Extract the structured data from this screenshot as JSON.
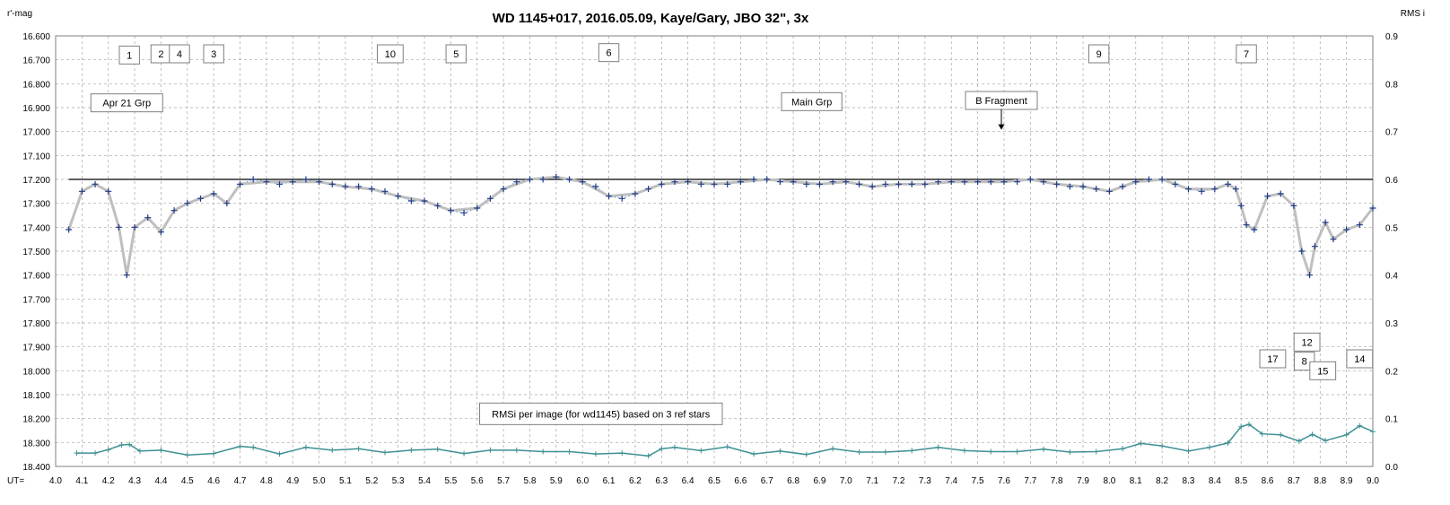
{
  "chart_data": {
    "type": "scatter",
    "title": "WD 1145+017,  2016.05.09,  Kaye/Gary,  JBO 32\",  3x",
    "ylabel_left": "r'-mag",
    "ylabel_right": "RMS i",
    "xlabel": "UT=",
    "xlim": [
      4.0,
      9.0
    ],
    "ylim_left": [
      18.4,
      16.6
    ],
    "ylim_right": [
      0.0,
      0.9
    ],
    "left_axis_inverted": true,
    "grid": true,
    "x_ticks": [
      "4.0",
      "4.1",
      "4.2",
      "4.3",
      "4.4",
      "4.5",
      "4.6",
      "4.7",
      "4.8",
      "4.9",
      "5.0",
      "5.1",
      "5.2",
      "5.3",
      "5.4",
      "5.5",
      "5.6",
      "5.7",
      "5.8",
      "5.9",
      "6.0",
      "6.1",
      "6.2",
      "6.3",
      "6.4",
      "6.5",
      "6.6",
      "6.7",
      "6.8",
      "6.9",
      "7.0",
      "7.1",
      "7.2",
      "7.3",
      "7.4",
      "7.5",
      "7.6",
      "7.7",
      "7.8",
      "7.9",
      "8.0",
      "8.1",
      "8.2",
      "8.3",
      "8.4",
      "8.5",
      "8.6",
      "8.7",
      "8.8",
      "8.9",
      "9.0"
    ],
    "y_ticks_left": [
      "16.600",
      "16.700",
      "16.800",
      "16.900",
      "17.000",
      "17.100",
      "17.200",
      "17.300",
      "17.400",
      "17.500",
      "17.600",
      "17.700",
      "17.800",
      "17.900",
      "18.000",
      "18.100",
      "18.200",
      "18.300",
      "18.400"
    ],
    "y_ticks_right": [
      "0.9",
      "0.8",
      "0.7",
      "0.6",
      "0.5",
      "0.4",
      "0.3",
      "0.2",
      "0.1",
      "0.0"
    ],
    "reference_line": 17.2,
    "colors": {
      "mag_points": "#1f3c88",
      "mag_dotted": "#6f9fd8",
      "trend": "#bfbfbf",
      "rms": "#3e8f94",
      "grid": "#a6a6a6"
    },
    "series": [
      {
        "role": "magnitude",
        "x": [
          4.05,
          4.1,
          4.15,
          4.2,
          4.24,
          4.27,
          4.3,
          4.35,
          4.4,
          4.45,
          4.5,
          4.55,
          4.6,
          4.65,
          4.7,
          4.75,
          4.8,
          4.85,
          4.9,
          4.95,
          5.0,
          5.05,
          5.1,
          5.15,
          5.2,
          5.25,
          5.3,
          5.35,
          5.4,
          5.45,
          5.5,
          5.55,
          5.6,
          5.65,
          5.7,
          5.75,
          5.8,
          5.85,
          5.9,
          5.95,
          6.0,
          6.05,
          6.1,
          6.15,
          6.2,
          6.25,
          6.3,
          6.35,
          6.4,
          6.45,
          6.5,
          6.55,
          6.6,
          6.65,
          6.7,
          6.75,
          6.8,
          6.85,
          6.9,
          6.95,
          7.0,
          7.05,
          7.1,
          7.15,
          7.2,
          7.25,
          7.3,
          7.35,
          7.4,
          7.45,
          7.5,
          7.55,
          7.6,
          7.65,
          7.7,
          7.75,
          7.8,
          7.85,
          7.9,
          7.95,
          8.0,
          8.05,
          8.1,
          8.15,
          8.2,
          8.25,
          8.3,
          8.35,
          8.4,
          8.45,
          8.48,
          8.5,
          8.52,
          8.55,
          8.6,
          8.65,
          8.7,
          8.73,
          8.76,
          8.78,
          8.82,
          8.85,
          8.9,
          8.95,
          9.0
        ],
        "values": [
          17.41,
          17.25,
          17.22,
          17.25,
          17.4,
          17.6,
          17.4,
          17.36,
          17.42,
          17.33,
          17.3,
          17.28,
          17.26,
          17.3,
          17.22,
          17.2,
          17.21,
          17.22,
          17.21,
          17.2,
          17.21,
          17.22,
          17.23,
          17.23,
          17.24,
          17.25,
          17.27,
          17.29,
          17.29,
          17.31,
          17.33,
          17.34,
          17.32,
          17.28,
          17.24,
          17.21,
          17.2,
          17.2,
          17.19,
          17.2,
          17.21,
          17.23,
          17.27,
          17.28,
          17.26,
          17.24,
          17.22,
          17.21,
          17.21,
          17.22,
          17.22,
          17.22,
          17.21,
          17.2,
          17.2,
          17.21,
          17.21,
          17.22,
          17.22,
          17.21,
          17.21,
          17.22,
          17.23,
          17.22,
          17.22,
          17.22,
          17.22,
          17.21,
          17.21,
          17.21,
          17.21,
          17.21,
          17.21,
          17.21,
          17.2,
          17.21,
          17.22,
          17.23,
          17.23,
          17.24,
          17.25,
          17.23,
          17.21,
          17.2,
          17.2,
          17.22,
          17.24,
          17.25,
          17.24,
          17.22,
          17.24,
          17.31,
          17.39,
          17.41,
          17.27,
          17.26,
          17.31,
          17.5,
          17.6,
          17.48,
          17.38,
          17.45,
          17.41,
          17.39,
          17.32
        ]
      },
      {
        "role": "trend",
        "x": [
          4.05,
          4.1,
          4.15,
          4.2,
          4.24,
          4.27,
          4.3,
          4.35,
          4.4,
          4.45,
          4.5,
          4.55,
          4.6,
          4.65,
          4.7,
          4.8,
          4.9,
          5.0,
          5.1,
          5.2,
          5.3,
          5.4,
          5.5,
          5.6,
          5.7,
          5.8,
          5.9,
          6.0,
          6.1,
          6.2,
          6.3,
          6.4,
          6.5,
          6.6,
          6.7,
          6.8,
          6.9,
          7.0,
          7.1,
          7.2,
          7.3,
          7.4,
          7.5,
          7.6,
          7.7,
          7.8,
          7.9,
          8.0,
          8.1,
          8.2,
          8.3,
          8.4,
          8.45,
          8.48,
          8.5,
          8.52,
          8.55,
          8.6,
          8.65,
          8.7,
          8.73,
          8.76,
          8.78,
          8.82,
          8.85,
          8.9,
          8.95,
          9.0
        ],
        "values": [
          17.41,
          17.25,
          17.22,
          17.25,
          17.4,
          17.6,
          17.4,
          17.36,
          17.42,
          17.33,
          17.3,
          17.28,
          17.26,
          17.3,
          17.22,
          17.21,
          17.21,
          17.21,
          17.23,
          17.24,
          17.27,
          17.29,
          17.33,
          17.32,
          17.24,
          17.2,
          17.19,
          17.21,
          17.27,
          17.26,
          17.22,
          17.21,
          17.22,
          17.21,
          17.2,
          17.21,
          17.22,
          17.21,
          17.23,
          17.22,
          17.22,
          17.21,
          17.21,
          17.21,
          17.2,
          17.22,
          17.23,
          17.25,
          17.21,
          17.2,
          17.24,
          17.24,
          17.22,
          17.24,
          17.31,
          17.39,
          17.41,
          17.27,
          17.26,
          17.31,
          17.5,
          17.6,
          17.48,
          17.38,
          17.45,
          17.41,
          17.39,
          17.32
        ]
      },
      {
        "name": "RMSi per image (for wd1145) based on 3 ref stars",
        "role": "rms",
        "x": [
          4.08,
          4.15,
          4.2,
          4.25,
          4.28,
          4.32,
          4.4,
          4.5,
          4.6,
          4.7,
          4.75,
          4.85,
          4.95,
          5.05,
          5.15,
          5.25,
          5.35,
          5.45,
          5.55,
          5.65,
          5.75,
          5.85,
          5.95,
          6.05,
          6.15,
          6.25,
          6.3,
          6.35,
          6.45,
          6.55,
          6.65,
          6.75,
          6.85,
          6.95,
          7.05,
          7.15,
          7.25,
          7.35,
          7.45,
          7.55,
          7.65,
          7.75,
          7.85,
          7.95,
          8.05,
          8.12,
          8.2,
          8.3,
          8.38,
          8.45,
          8.5,
          8.53,
          8.58,
          8.65,
          8.72,
          8.77,
          8.82,
          8.9,
          8.95,
          9.0
        ],
        "values": [
          0.028,
          0.028,
          0.035,
          0.045,
          0.046,
          0.032,
          0.034,
          0.024,
          0.027,
          0.042,
          0.04,
          0.026,
          0.04,
          0.034,
          0.037,
          0.029,
          0.034,
          0.036,
          0.027,
          0.034,
          0.034,
          0.031,
          0.031,
          0.026,
          0.028,
          0.022,
          0.037,
          0.04,
          0.033,
          0.041,
          0.026,
          0.032,
          0.025,
          0.037,
          0.03,
          0.03,
          0.033,
          0.04,
          0.033,
          0.031,
          0.031,
          0.036,
          0.03,
          0.031,
          0.037,
          0.048,
          0.043,
          0.032,
          0.04,
          0.049,
          0.083,
          0.088,
          0.068,
          0.066,
          0.053,
          0.067,
          0.054,
          0.066,
          0.085,
          0.073
        ]
      }
    ],
    "annotations": [
      {
        "text": "1",
        "x": 4.28,
        "y": 16.68
      },
      {
        "text": "2",
        "x": 4.4,
        "y": 16.675
      },
      {
        "text": "4",
        "x": 4.47,
        "y": 16.675
      },
      {
        "text": "3",
        "x": 4.6,
        "y": 16.675
      },
      {
        "text": "10",
        "x": 5.27,
        "y": 16.675
      },
      {
        "text": "5",
        "x": 5.52,
        "y": 16.675
      },
      {
        "text": "6",
        "x": 6.1,
        "y": 16.67
      },
      {
        "text": "9",
        "x": 7.96,
        "y": 16.675
      },
      {
        "text": "7",
        "x": 8.52,
        "y": 16.675
      },
      {
        "text": "Apr 21 Grp",
        "x": 4.27,
        "y": 16.88
      },
      {
        "text": "Main Grp",
        "x": 6.87,
        "y": 16.875
      },
      {
        "text": "B Fragment",
        "x": 7.59,
        "y": 16.87
      },
      {
        "text": "12",
        "x": 8.75,
        "y": 17.88
      },
      {
        "text": "17",
        "x": 8.62,
        "y": 17.95
      },
      {
        "text": "8",
        "x": 8.74,
        "y": 17.96
      },
      {
        "text": "14",
        "x": 8.95,
        "y": 17.95
      },
      {
        "text": "15",
        "x": 8.81,
        "y": 18.0
      }
    ],
    "arrow_from_annotation": {
      "text": "B Fragment",
      "points_to": {
        "x": 7.59,
        "y": 17.0
      }
    }
  }
}
